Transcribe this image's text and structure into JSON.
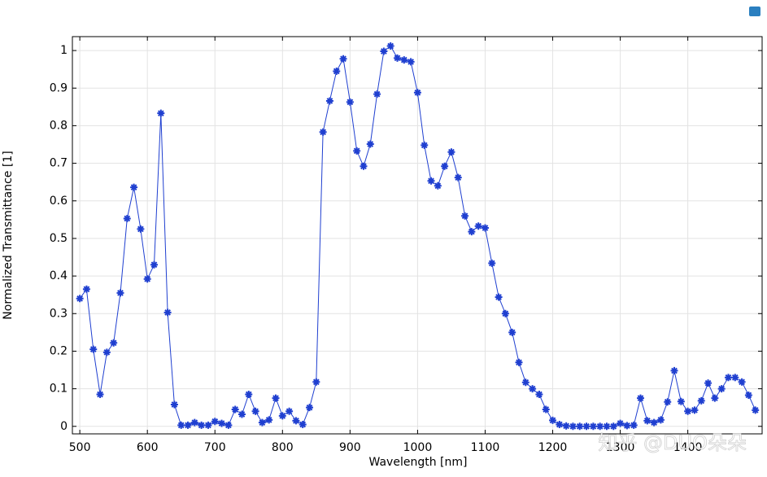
{
  "chart_data": {
    "type": "line",
    "xlabel": "Wavelength [nm]",
    "ylabel": "Normalized Transmittance [1]",
    "watermark": "知乎 @DUO朵朵",
    "x": [
      500,
      510,
      520,
      530,
      540,
      550,
      560,
      570,
      580,
      590,
      600,
      610,
      620,
      630,
      640,
      650,
      660,
      670,
      680,
      690,
      700,
      710,
      720,
      730,
      740,
      750,
      760,
      770,
      780,
      790,
      800,
      810,
      820,
      830,
      840,
      850,
      860,
      870,
      880,
      890,
      900,
      910,
      920,
      930,
      940,
      950,
      960,
      970,
      980,
      990,
      1000,
      1010,
      1020,
      1030,
      1040,
      1050,
      1060,
      1070,
      1080,
      1090,
      1100,
      1110,
      1120,
      1130,
      1140,
      1150,
      1160,
      1170,
      1180,
      1190,
      1200,
      1210,
      1220,
      1230,
      1240,
      1250,
      1260,
      1270,
      1280,
      1290,
      1300,
      1310,
      1320,
      1330,
      1340,
      1350,
      1360,
      1370,
      1380,
      1390,
      1400,
      1410,
      1420,
      1430,
      1440,
      1450,
      1460,
      1470,
      1480,
      1490,
      1500
    ],
    "series": [
      {
        "color": "#1f3fd0",
        "values": [
          0.34,
          0.365,
          0.205,
          0.085,
          0.197,
          0.222,
          0.355,
          0.553,
          0.636,
          0.525,
          0.392,
          0.43,
          0.833,
          0.303,
          0.058,
          0.003,
          0.003,
          0.01,
          0.003,
          0.003,
          0.013,
          0.008,
          0.003,
          0.045,
          0.032,
          0.085,
          0.04,
          0.01,
          0.017,
          0.075,
          0.028,
          0.04,
          0.015,
          0.005,
          0.05,
          0.118,
          0.783,
          0.866,
          0.945,
          0.978,
          0.863,
          0.733,
          0.692,
          0.751,
          0.884,
          0.998,
          1.012,
          0.98,
          0.975,
          0.97,
          0.888,
          0.748,
          0.653,
          0.64,
          0.692,
          0.73,
          0.662,
          0.56,
          0.518,
          0.533,
          0.528,
          0.434,
          0.344,
          0.3,
          0.25,
          0.17,
          0.117,
          0.1,
          0.085,
          0.045,
          0.016,
          0.005,
          0.001,
          0,
          0,
          0,
          0,
          0,
          0,
          0,
          0.008,
          0.002,
          0.003,
          0.075,
          0.015,
          0.01,
          0.017,
          0.065,
          0.148,
          0.066,
          0.04,
          0.043,
          0.068,
          0.115,
          0.075,
          0.1,
          0.13,
          0.13,
          0.118,
          0.083,
          0.043
        ]
      }
    ],
    "xlim": [
      489,
      1510
    ],
    "ylim": [
      -0.02,
      1.037
    ],
    "xticks": [
      500,
      600,
      700,
      800,
      900,
      1000,
      1100,
      1200,
      1300,
      1400
    ],
    "yticks": [
      0,
      0.1,
      0.2,
      0.3,
      0.4,
      0.5,
      0.6,
      0.7,
      0.8,
      0.9,
      1
    ],
    "grid": true
  }
}
